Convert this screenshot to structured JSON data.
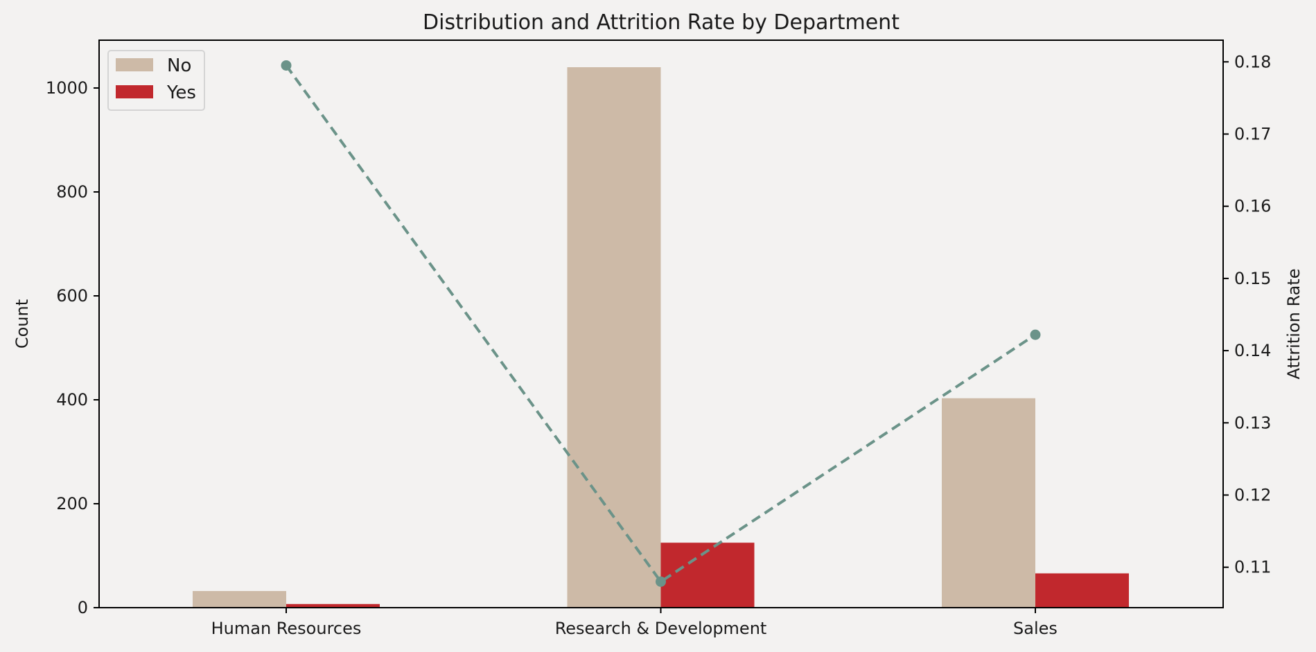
{
  "chart_data": {
    "type": "bar",
    "title": "Distribution and Attrition Rate by Department",
    "categories": [
      "Human Resources",
      "Research & Development",
      "Sales"
    ],
    "series": [
      {
        "name": "No",
        "values": [
          32,
          1040,
          403
        ],
        "color": "#cdbaa7"
      },
      {
        "name": "Yes",
        "values": [
          7,
          125,
          66
        ],
        "color": "#c1282d"
      }
    ],
    "line_series": {
      "values": [
        0.1795,
        0.108,
        0.1422
      ],
      "color": "#6b9389",
      "style": "dashed"
    },
    "ylabel": "Count",
    "y2label": "Attrition Rate",
    "ylim": [
      0,
      1092
    ],
    "y2lim": [
      0.1044,
      0.183
    ],
    "yticks": [
      0,
      200,
      400,
      600,
      800,
      1000
    ],
    "y2ticks": [
      0.11,
      0.12,
      0.13,
      0.14,
      0.15,
      0.16,
      0.17,
      0.18
    ],
    "y2tick_labels": [
      "0.11",
      "0.12",
      "0.13",
      "0.14",
      "0.15",
      "0.16",
      "0.17",
      "0.18"
    ],
    "legend": {
      "placement": "top-left",
      "entries": [
        "No",
        "Yes"
      ]
    },
    "grid": false,
    "background": "#f3f2f1"
  }
}
